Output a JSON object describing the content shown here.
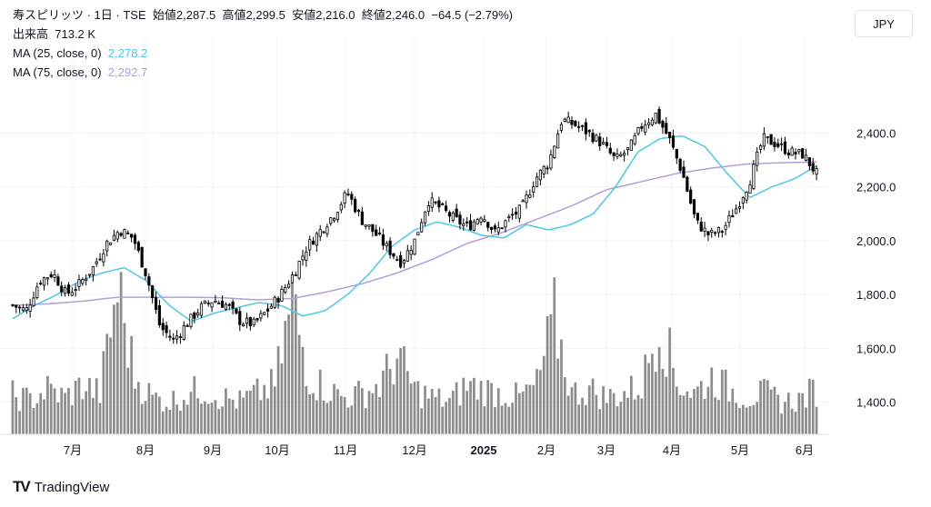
{
  "legend": {
    "title": "寿スピリッツ · 1日 · TSE",
    "open_label": "始値",
    "open": "2,287.5",
    "high_label": "高値",
    "high": "2,299.5",
    "low_label": "安値",
    "low": "2,216.0",
    "close_label": "終値",
    "close": "2,246.0",
    "change": "−64.5 (−2.79%)",
    "volume_label": "出来高",
    "volume": "713.2 K",
    "ma25_label": "MA (25, close, 0)",
    "ma25_value": "2,278.2",
    "ma75_label": "MA (75, close, 0)",
    "ma75_value": "2,292.7"
  },
  "currency_button": "JPY",
  "brand": {
    "logo": "TV",
    "name": "TradingView"
  },
  "colors": {
    "up_fill": "#ffffff",
    "down_fill": "#000000",
    "candle_stroke": "#000000",
    "ma25": "#4dc9e6",
    "ma75": "#b39ddb",
    "volume": "#8c8c8c"
  },
  "chart_data": {
    "type": "candlestick",
    "title": "寿スピリッツ · 1日 · TSE",
    "ylim": [
      1280,
      2760
    ],
    "y_ticks": [
      2400,
      2200,
      2000,
      1800,
      1600,
      1400
    ],
    "y_tick_labels": [
      "2,400.0",
      "2,200.0",
      "2,000.0",
      "1,800.0",
      "1,600.0",
      "1,400.0"
    ],
    "x_labels": [
      "7月",
      "8月",
      "9月",
      "10月",
      "11月",
      "12月",
      "2025",
      "2月",
      "3月",
      "4月",
      "5月",
      "6月"
    ],
    "close_anchors": [
      1760,
      1740,
      1850,
      1880,
      1800,
      1840,
      1900,
      1990,
      2040,
      2010,
      1870,
      1680,
      1630,
      1690,
      1750,
      1780,
      1760,
      1700,
      1690,
      1740,
      1800,
      1880,
      1980,
      2040,
      2100,
      2180,
      2080,
      2030,
      1970,
      1920,
      2000,
      2150,
      2120,
      2080,
      2050,
      2100,
      2030,
      2080,
      2120,
      2230,
      2290,
      2450,
      2430,
      2400,
      2360,
      2300,
      2340,
      2430,
      2470,
      2380,
      2250,
      2070,
      2020,
      2040,
      2120,
      2220,
      2380,
      2360,
      2330,
      2320,
      2250
    ],
    "ma25_anchors": [
      1710,
      1760,
      1800,
      1850,
      1880,
      1900,
      1850,
      1760,
      1700,
      1730,
      1750,
      1770,
      1760,
      1720,
      1740,
      1800,
      1880,
      1980,
      2040,
      2070,
      2050,
      2020,
      2010,
      2060,
      2040,
      2060,
      2100,
      2200,
      2330,
      2380,
      2390,
      2350,
      2250,
      2160,
      2200,
      2230,
      2278
    ],
    "ma75_anchors": [
      1760,
      1765,
      1775,
      1790,
      1790,
      1790,
      1788,
      1780,
      1785,
      1810,
      1840,
      1880,
      1930,
      1990,
      2030,
      2080,
      2130,
      2190,
      2220,
      2250,
      2270,
      2285,
      2290,
      2293
    ],
    "volume_anchors": [
      48,
      42,
      55,
      45,
      60,
      50,
      180,
      70,
      45,
      40,
      50,
      55,
      45,
      40,
      50,
      60,
      160,
      70,
      55,
      45,
      50,
      60,
      95,
      55,
      45,
      40,
      60,
      55,
      50,
      45,
      60,
      140,
      50,
      55,
      45,
      50,
      60,
      140,
      65,
      50,
      70,
      55,
      45,
      50,
      40,
      42,
      55
    ]
  }
}
